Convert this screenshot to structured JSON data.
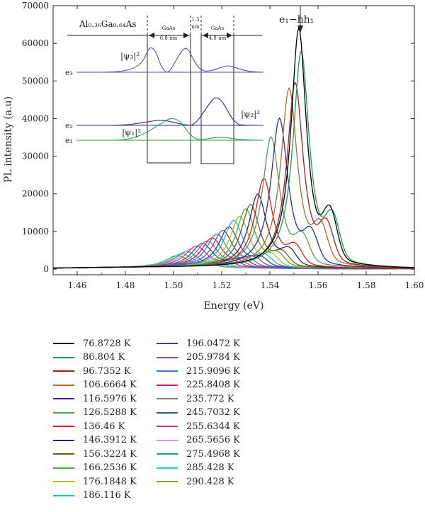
{
  "chart_data": {
    "type": "line",
    "xlabel": "Energy (eV)",
    "ylabel": "PL intensity (a.u)",
    "xlim": [
      1.45,
      1.6
    ],
    "ylim": [
      -1500,
      70000
    ],
    "x_ticks": [
      "1.46",
      "1.48",
      "1.50",
      "1.52",
      "1.54",
      "1.56",
      "1.58",
      "1.60"
    ],
    "y_ticks": [
      "0",
      "10000",
      "20000",
      "30000",
      "40000",
      "50000",
      "60000",
      "70000"
    ],
    "grid": false,
    "legend_position": "bottom",
    "annotation": "e₁−hh₁",
    "series": [
      {
        "name": "76.8728 K",
        "color": "#000000",
        "peak_x": 1.552,
        "peak_y": 64000,
        "width": 0.0039
      },
      {
        "name": "86.804 K",
        "color": "#1a9e4e",
        "peak_x": 1.553,
        "peak_y": 57800,
        "width": 0.0041
      },
      {
        "name": "96.7352 K",
        "color": "#a3201e",
        "peak_x": 1.5505,
        "peak_y": 49500,
        "width": 0.0041
      },
      {
        "name": "106.6664 K",
        "color": "#b06a2c",
        "peak_x": 1.548,
        "peak_y": 48000,
        "width": 0.0042
      },
      {
        "name": "116.5976 K",
        "color": "#2a2e8a",
        "peak_x": 1.544,
        "peak_y": 40000,
        "width": 0.0043
      },
      {
        "name": "126.5288 K",
        "color": "#5a9a5a",
        "peak_x": 1.5405,
        "peak_y": 35000,
        "width": 0.0044
      },
      {
        "name": "136.46 K",
        "color": "#e01a1a",
        "peak_x": 1.5375,
        "peak_y": 24000,
        "width": 0.0045
      },
      {
        "name": "146.3912 K",
        "color": "#24276b",
        "peak_x": 1.535,
        "peak_y": 19800,
        "width": 0.0046
      },
      {
        "name": "156.3224 K",
        "color": "#6b5a26",
        "peak_x": 1.532,
        "peak_y": 17000,
        "width": 0.0047
      },
      {
        "name": "166.2536 K",
        "color": "#46b23c",
        "peak_x": 1.53,
        "peak_y": 15800,
        "width": 0.0048
      },
      {
        "name": "176.1848 K",
        "color": "#b5b82b",
        "peak_x": 1.5275,
        "peak_y": 13800,
        "width": 0.0049
      },
      {
        "name": "186.116 K",
        "color": "#25b0e0",
        "peak_x": 1.525,
        "peak_y": 12700,
        "width": 0.005
      },
      {
        "name": "196.0472 K",
        "color": "#3a3aa5",
        "peak_x": 1.523,
        "peak_y": 11000,
        "width": 0.0051
      },
      {
        "name": "205.9784 K",
        "color": "#7a4cad",
        "peak_x": 1.5205,
        "peak_y": 10000,
        "width": 0.0052
      },
      {
        "name": "215.9096 K",
        "color": "#3b7bbf",
        "peak_x": 1.518,
        "peak_y": 9000,
        "width": 0.0053
      },
      {
        "name": "225.8408 K",
        "color": "#c0206b",
        "peak_x": 1.516,
        "peak_y": 8000,
        "width": 0.0054
      },
      {
        "name": "235.772 K",
        "color": "#7f7f7f",
        "peak_x": 1.514,
        "peak_y": 7200,
        "width": 0.0055
      },
      {
        "name": "245.7032 K",
        "color": "#2d5b9a",
        "peak_x": 1.512,
        "peak_y": 6500,
        "width": 0.0056
      },
      {
        "name": "255.6344 K",
        "color": "#d2349b",
        "peak_x": 1.5095,
        "peak_y": 5800,
        "width": 0.0057
      },
      {
        "name": "265.5656 K",
        "color": "#e68fc8",
        "peak_x": 1.5075,
        "peak_y": 5000,
        "width": 0.0058
      },
      {
        "name": "275.4968 K",
        "color": "#1f9a9a",
        "peak_x": 1.5055,
        "peak_y": 4300,
        "width": 0.0059
      },
      {
        "name": "285.428 K",
        "color": "#2ec7d6",
        "peak_x": 1.5035,
        "peak_y": 3700,
        "width": 0.006
      },
      {
        "name": "290.428 K",
        "color": "#8f9a2a",
        "peak_x": 1.5015,
        "peak_y": 3200,
        "width": 0.0061
      }
    ]
  },
  "inset": {
    "barrier_label": "Al₀.₃₆Ga₀.₆₄As",
    "well1_label": "GaAs",
    "well1_width": "6.8 nm",
    "barrier2_top": "1.5",
    "barrier2_bottom": "nm",
    "well2_label": "GaAs",
    "well2_width": "4.8 nm",
    "psi3": "|ψ₃|²",
    "psi2": "|ψ₂|²",
    "psi1": "|ψ₁|²",
    "e3": "e₃",
    "e2": "e₂",
    "e1": "e₁",
    "color_e3": "#5a4aa8",
    "color_e2": "#2a2e8a",
    "color_e1": "#2e9a4a"
  }
}
